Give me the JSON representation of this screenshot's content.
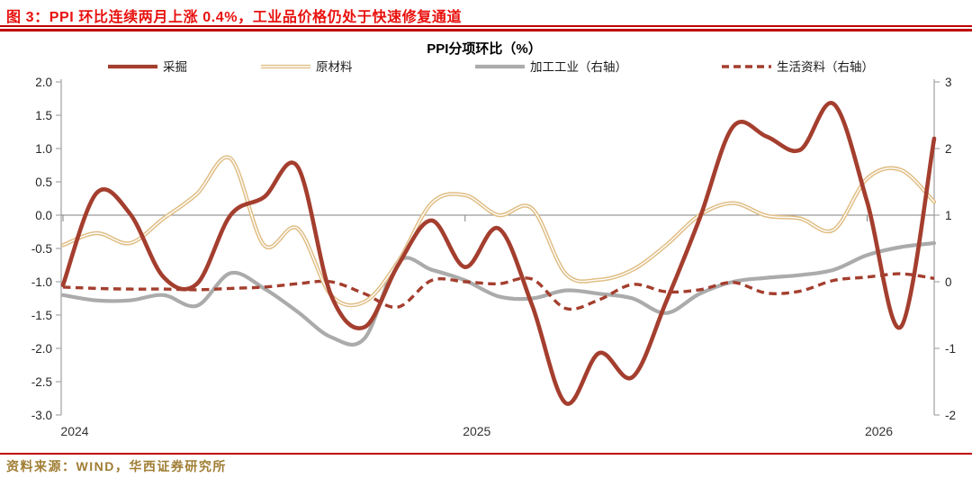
{
  "header": {
    "title": "图 3：PPI 环比连续两月上涨 0.4%，工业品价格仍处于快速修复通道"
  },
  "footer": {
    "source": "资料来源：WIND，华西证券研究所"
  },
  "colors": {
    "title_red": "#e8110e",
    "rule_red": "#c00000",
    "mining_red": "#a43e2e",
    "raw_material_tan": "#e0be85",
    "processing_gray": "#ababab",
    "source_gold": "#a07d33",
    "axis_gray": "#a6a6a6",
    "zero_line_gray": "#808080",
    "tick_text": "#262626"
  },
  "chart_data": {
    "type": "line",
    "title": "PPI分项环比（%）",
    "x_tick_labels": [
      "2024",
      "2025",
      "2026"
    ],
    "x_tick_month_index": [
      0,
      12,
      24
    ],
    "left_axis": {
      "max": 2.0,
      "min": -3.0,
      "ticks": [
        "2.0",
        "1.5",
        "1.0",
        "0.5",
        "0.0",
        "-0.5",
        "-1.0",
        "-1.5",
        "-2.0",
        "-2.5",
        "-3.0"
      ]
    },
    "right_axis": {
      "max": 3,
      "min": -2,
      "ticks": [
        "3",
        "2",
        "1",
        "0",
        "-1",
        "-2"
      ]
    },
    "grid": "zero-line-only",
    "legend_position": "top",
    "months": [
      "2024-01",
      "2024-02",
      "2024-03",
      "2024-04",
      "2024-05",
      "2024-06",
      "2024-07",
      "2024-08",
      "2024-09",
      "2024-10",
      "2024-11",
      "2024-12",
      "2025-01",
      "2025-02",
      "2025-03",
      "2025-04",
      "2025-05",
      "2025-06",
      "2025-07",
      "2025-08",
      "2025-09",
      "2025-10",
      "2025-11",
      "2025-12",
      "2026-01",
      "2026-02",
      "2026-03"
    ],
    "series": [
      {
        "name": "采掘",
        "axis": "left",
        "style": "solid",
        "color": "#a43e2e",
        "values": [
          -1.05,
          0.33,
          0.02,
          -0.93,
          -1.03,
          0.0,
          0.27,
          0.73,
          -1.2,
          -1.68,
          -0.75,
          -0.08,
          -0.78,
          -0.2,
          -1.35,
          -2.82,
          -2.07,
          -2.43,
          -1.3,
          -0.05,
          1.33,
          1.18,
          0.98,
          1.67,
          0.2,
          -1.68,
          1.15
        ]
      },
      {
        "name": "原材料",
        "axis": "left",
        "style": "double",
        "color": "#e0be85",
        "values": [
          -0.45,
          -0.27,
          -0.42,
          -0.05,
          0.32,
          0.85,
          -0.45,
          -0.2,
          -1.2,
          -1.3,
          -0.7,
          0.18,
          0.3,
          0.0,
          0.1,
          -0.88,
          -0.97,
          -0.82,
          -0.45,
          0.0,
          0.18,
          -0.01,
          -0.05,
          -0.22,
          0.55,
          0.68,
          0.2
        ]
      },
      {
        "name": "加工工业（右轴）",
        "axis": "right",
        "style": "solid",
        "color": "#ababab",
        "values": [
          -0.2,
          -0.28,
          -0.28,
          -0.2,
          -0.36,
          0.13,
          -0.1,
          -0.45,
          -0.83,
          -0.85,
          0.3,
          0.18,
          0.02,
          -0.22,
          -0.25,
          -0.13,
          -0.18,
          -0.25,
          -0.47,
          -0.18,
          0.0,
          0.06,
          0.1,
          0.18,
          0.4,
          0.52,
          0.58
        ]
      },
      {
        "name": "生活资料（右轴）",
        "axis": "right",
        "style": "dashed",
        "color": "#a43e2e",
        "values": [
          -0.08,
          -0.1,
          -0.11,
          -0.11,
          -0.12,
          -0.1,
          -0.08,
          -0.03,
          0.0,
          -0.18,
          -0.38,
          0.02,
          0.0,
          -0.03,
          0.04,
          -0.4,
          -0.27,
          -0.04,
          -0.15,
          -0.12,
          -0.01,
          -0.17,
          -0.14,
          0.02,
          0.07,
          0.12,
          0.05
        ]
      }
    ]
  }
}
